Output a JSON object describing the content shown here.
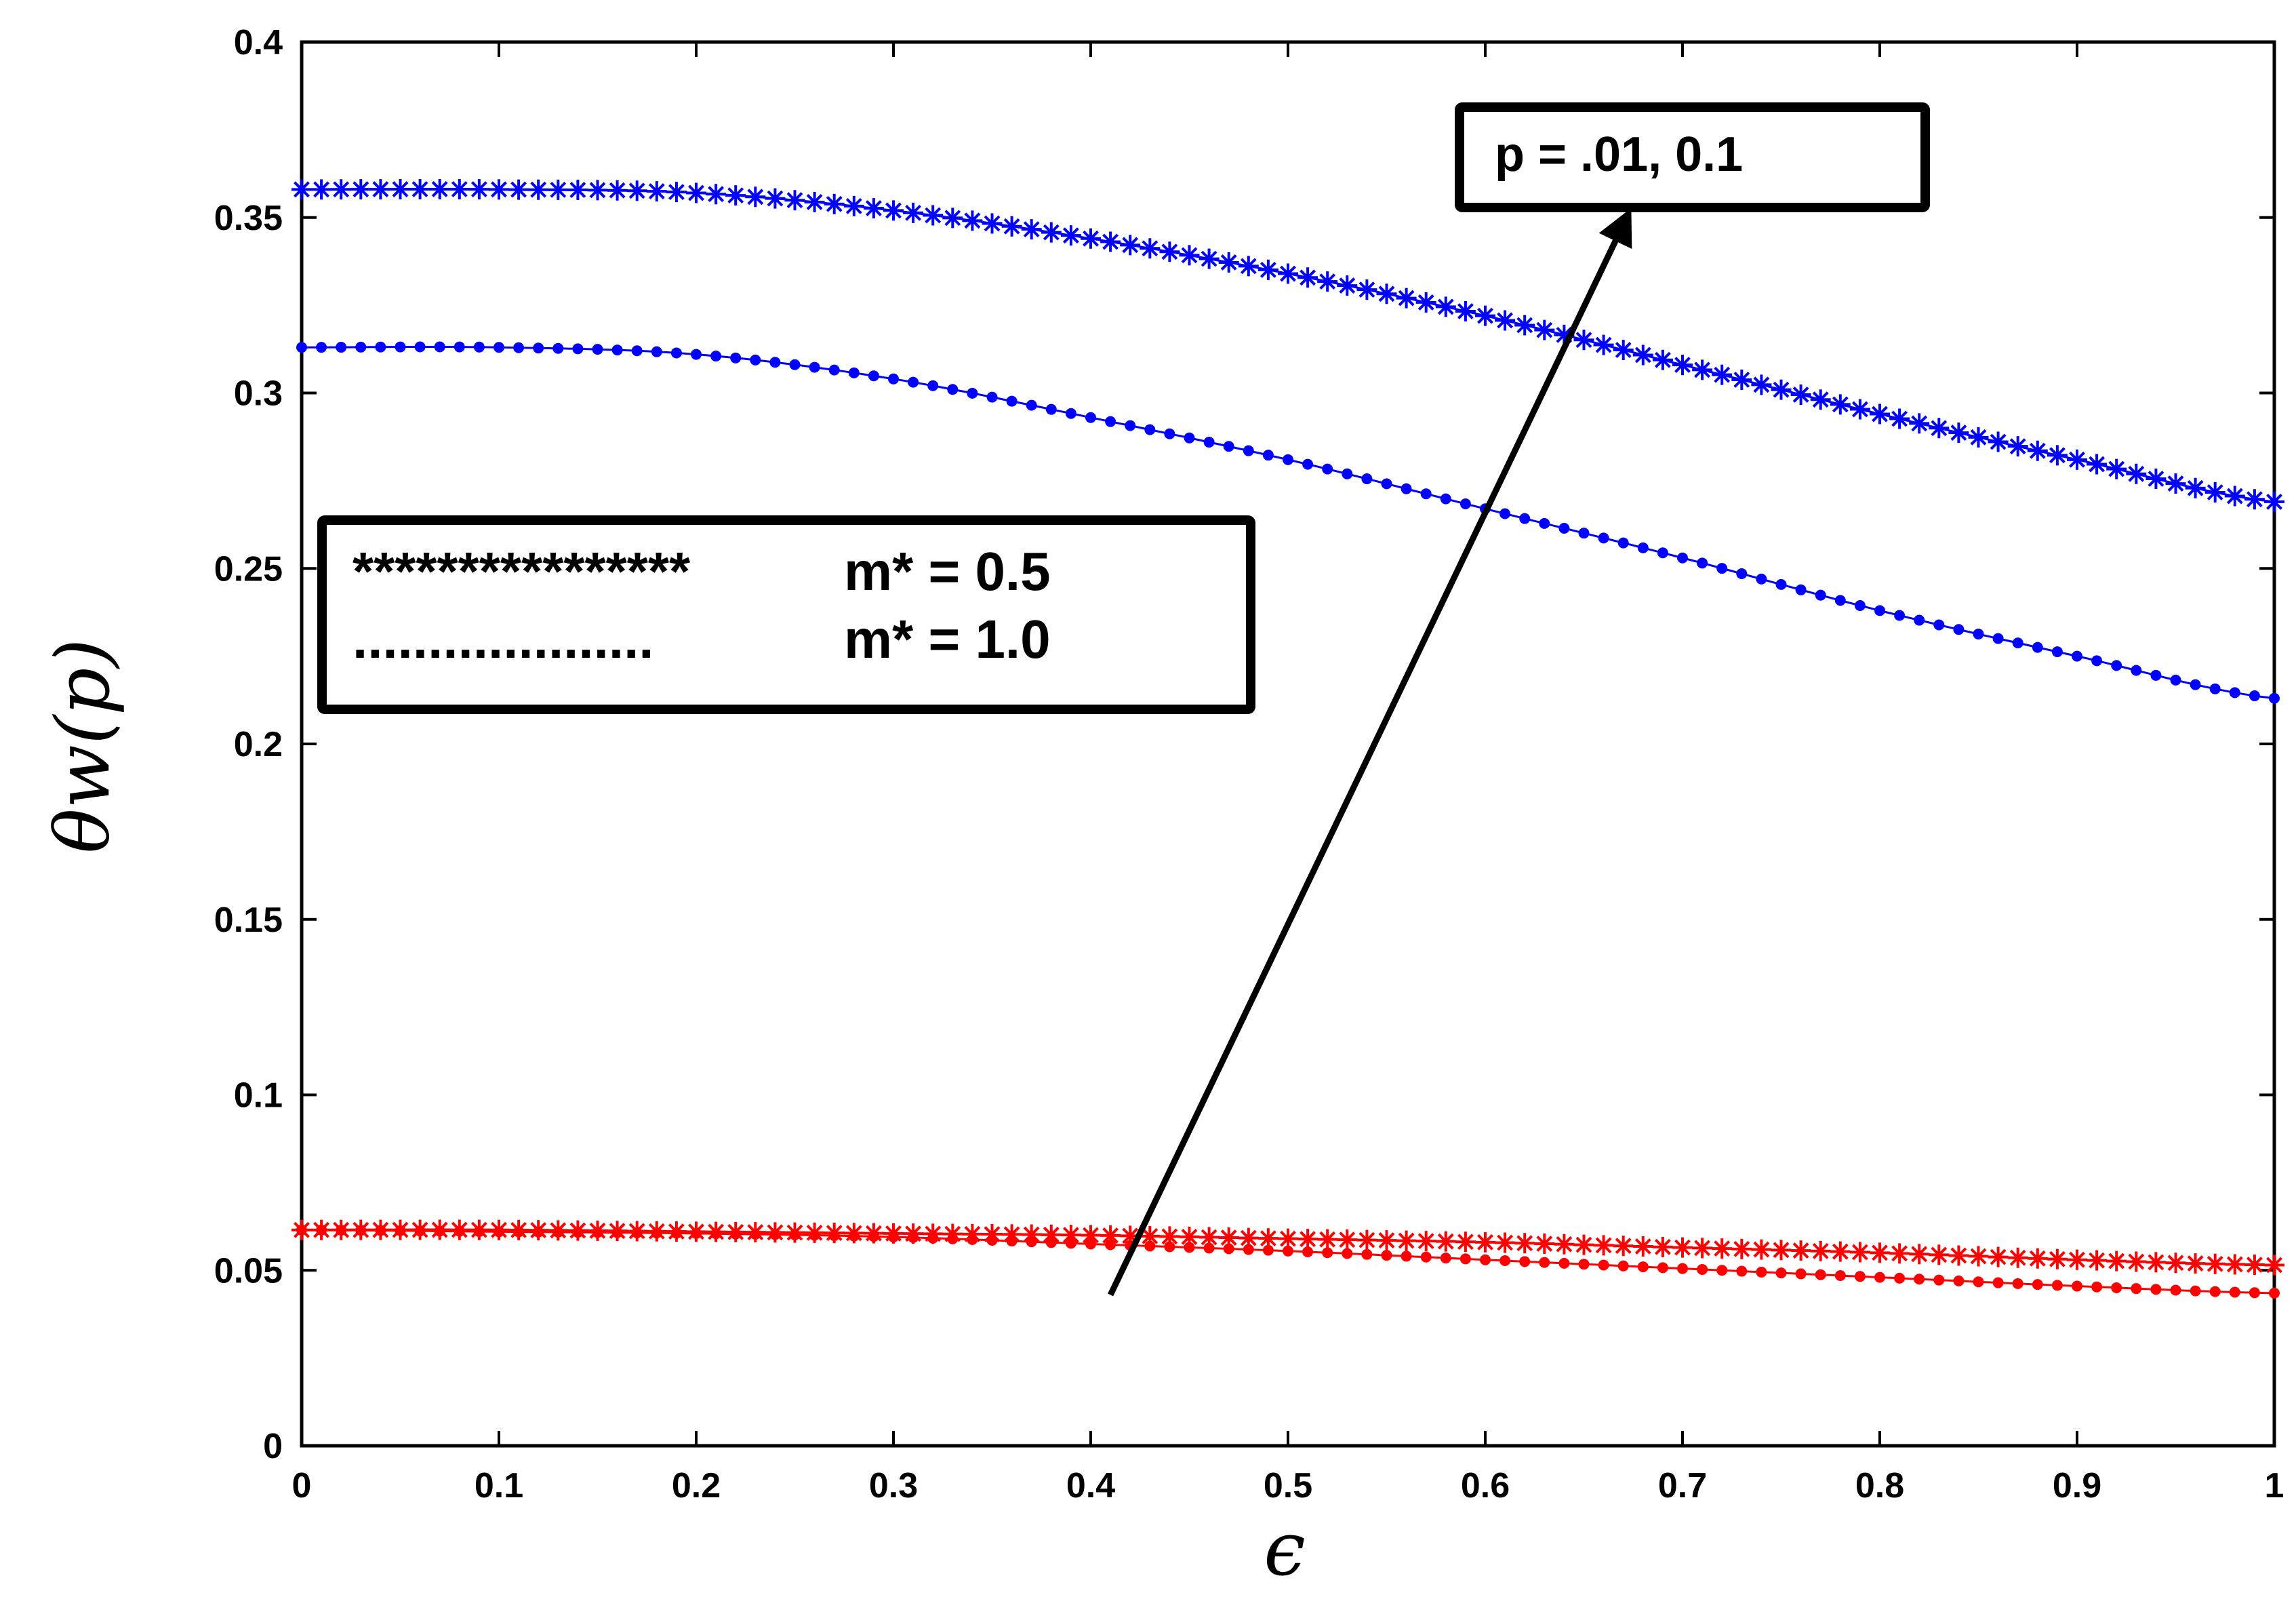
{
  "chart_data": {
    "type": "line",
    "xlabel": "ϵ",
    "ylabel": "θw(p)",
    "xlim": [
      0,
      1
    ],
    "ylim": [
      0,
      0.4
    ],
    "grid": false,
    "xticks": [
      0,
      0.1,
      0.2,
      0.3,
      0.4,
      0.5,
      0.6,
      0.7,
      0.8,
      0.9,
      1
    ],
    "xtick_labels": [
      "0",
      "0.1",
      "0.2",
      "0.3",
      "0.4",
      "0.5",
      "0.6",
      "0.7",
      "0.8",
      "0.9",
      "1"
    ],
    "yticks": [
      0,
      0.05,
      0.1,
      0.15,
      0.2,
      0.25,
      0.3,
      0.35,
      0.4
    ],
    "ytick_labels": [
      "0",
      "0.05",
      "0.1",
      "0.15",
      "0.2",
      "0.25",
      "0.3",
      "0.35",
      "0.4"
    ],
    "x": [
      0,
      0.1,
      0.2,
      0.3,
      0.4,
      0.5,
      0.6,
      0.7,
      0.8,
      0.9,
      1.0
    ],
    "series": [
      {
        "color": "#0000ff",
        "marker": "star",
        "values": [
          0.358,
          0.358,
          0.357,
          0.352,
          0.344,
          0.334,
          0.322,
          0.308,
          0.294,
          0.281,
          0.269
        ]
      },
      {
        "color": "#0000ff",
        "marker": "dot",
        "values": [
          0.313,
          0.313,
          0.311,
          0.304,
          0.293,
          0.281,
          0.267,
          0.253,
          0.238,
          0.225,
          0.213
        ]
      },
      {
        "color": "#ff0000",
        "marker": "star",
        "values": [
          0.0615,
          0.0615,
          0.061,
          0.0605,
          0.06,
          0.059,
          0.058,
          0.0565,
          0.055,
          0.053,
          0.0515
        ]
      },
      {
        "color": "#ff0000",
        "marker": "dot",
        "values": [
          0.0615,
          0.061,
          0.0605,
          0.0595,
          0.0575,
          0.0555,
          0.053,
          0.0505,
          0.048,
          0.0455,
          0.0435
        ]
      }
    ],
    "legend": {
      "placement": "left-middle",
      "entries": [
        {
          "symbol": "****************",
          "label": "m* = 0.5"
        },
        {
          "symbol": "....................",
          "label": "m* = 1.0"
        }
      ]
    },
    "annotation": {
      "text": "p = .01, 0.1",
      "arrow_from": [
        0.41,
        0.043
      ],
      "arrow_to": [
        0.67,
        0.348
      ]
    }
  }
}
